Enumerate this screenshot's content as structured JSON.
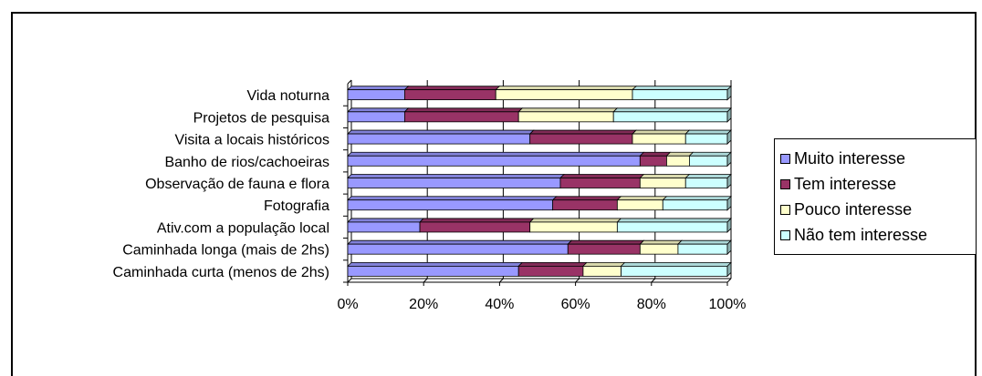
{
  "chart_data": {
    "type": "bar",
    "orientation": "horizontal",
    "stacked": "percent",
    "categories": [
      "Caminhada curta (menos de 2hs)",
      "Caminhada longa (mais de 2hs)",
      "Ativ.com a população local",
      "Fotografia",
      "Observação de fauna e flora",
      "Banho de rios/cachoeiras",
      "Visita a locais históricos",
      "Projetos de pesquisa",
      "Vida noturna"
    ],
    "series": [
      {
        "name": "Muito interesse",
        "color": "#9999FF",
        "values": [
          45,
          58,
          19,
          54,
          56,
          77,
          48,
          15,
          15
        ]
      },
      {
        "name": "Tem interesse",
        "color": "#993366",
        "values": [
          17,
          19,
          29,
          17,
          21,
          7,
          27,
          30,
          24
        ]
      },
      {
        "name": "Pouco interesse",
        "color": "#FFFFCC",
        "values": [
          10,
          10,
          23,
          12,
          12,
          6,
          14,
          25,
          36
        ]
      },
      {
        "name": "Não tem interesse",
        "color": "#CCFFFF",
        "values": [
          28,
          13,
          29,
          17,
          11,
          10,
          11,
          30,
          25
        ]
      }
    ],
    "xticks": [
      "0%",
      "20%",
      "40%",
      "60%",
      "80%",
      "100%"
    ],
    "xlim": [
      0,
      100
    ],
    "grid": "vertical",
    "legend_position": "right"
  }
}
